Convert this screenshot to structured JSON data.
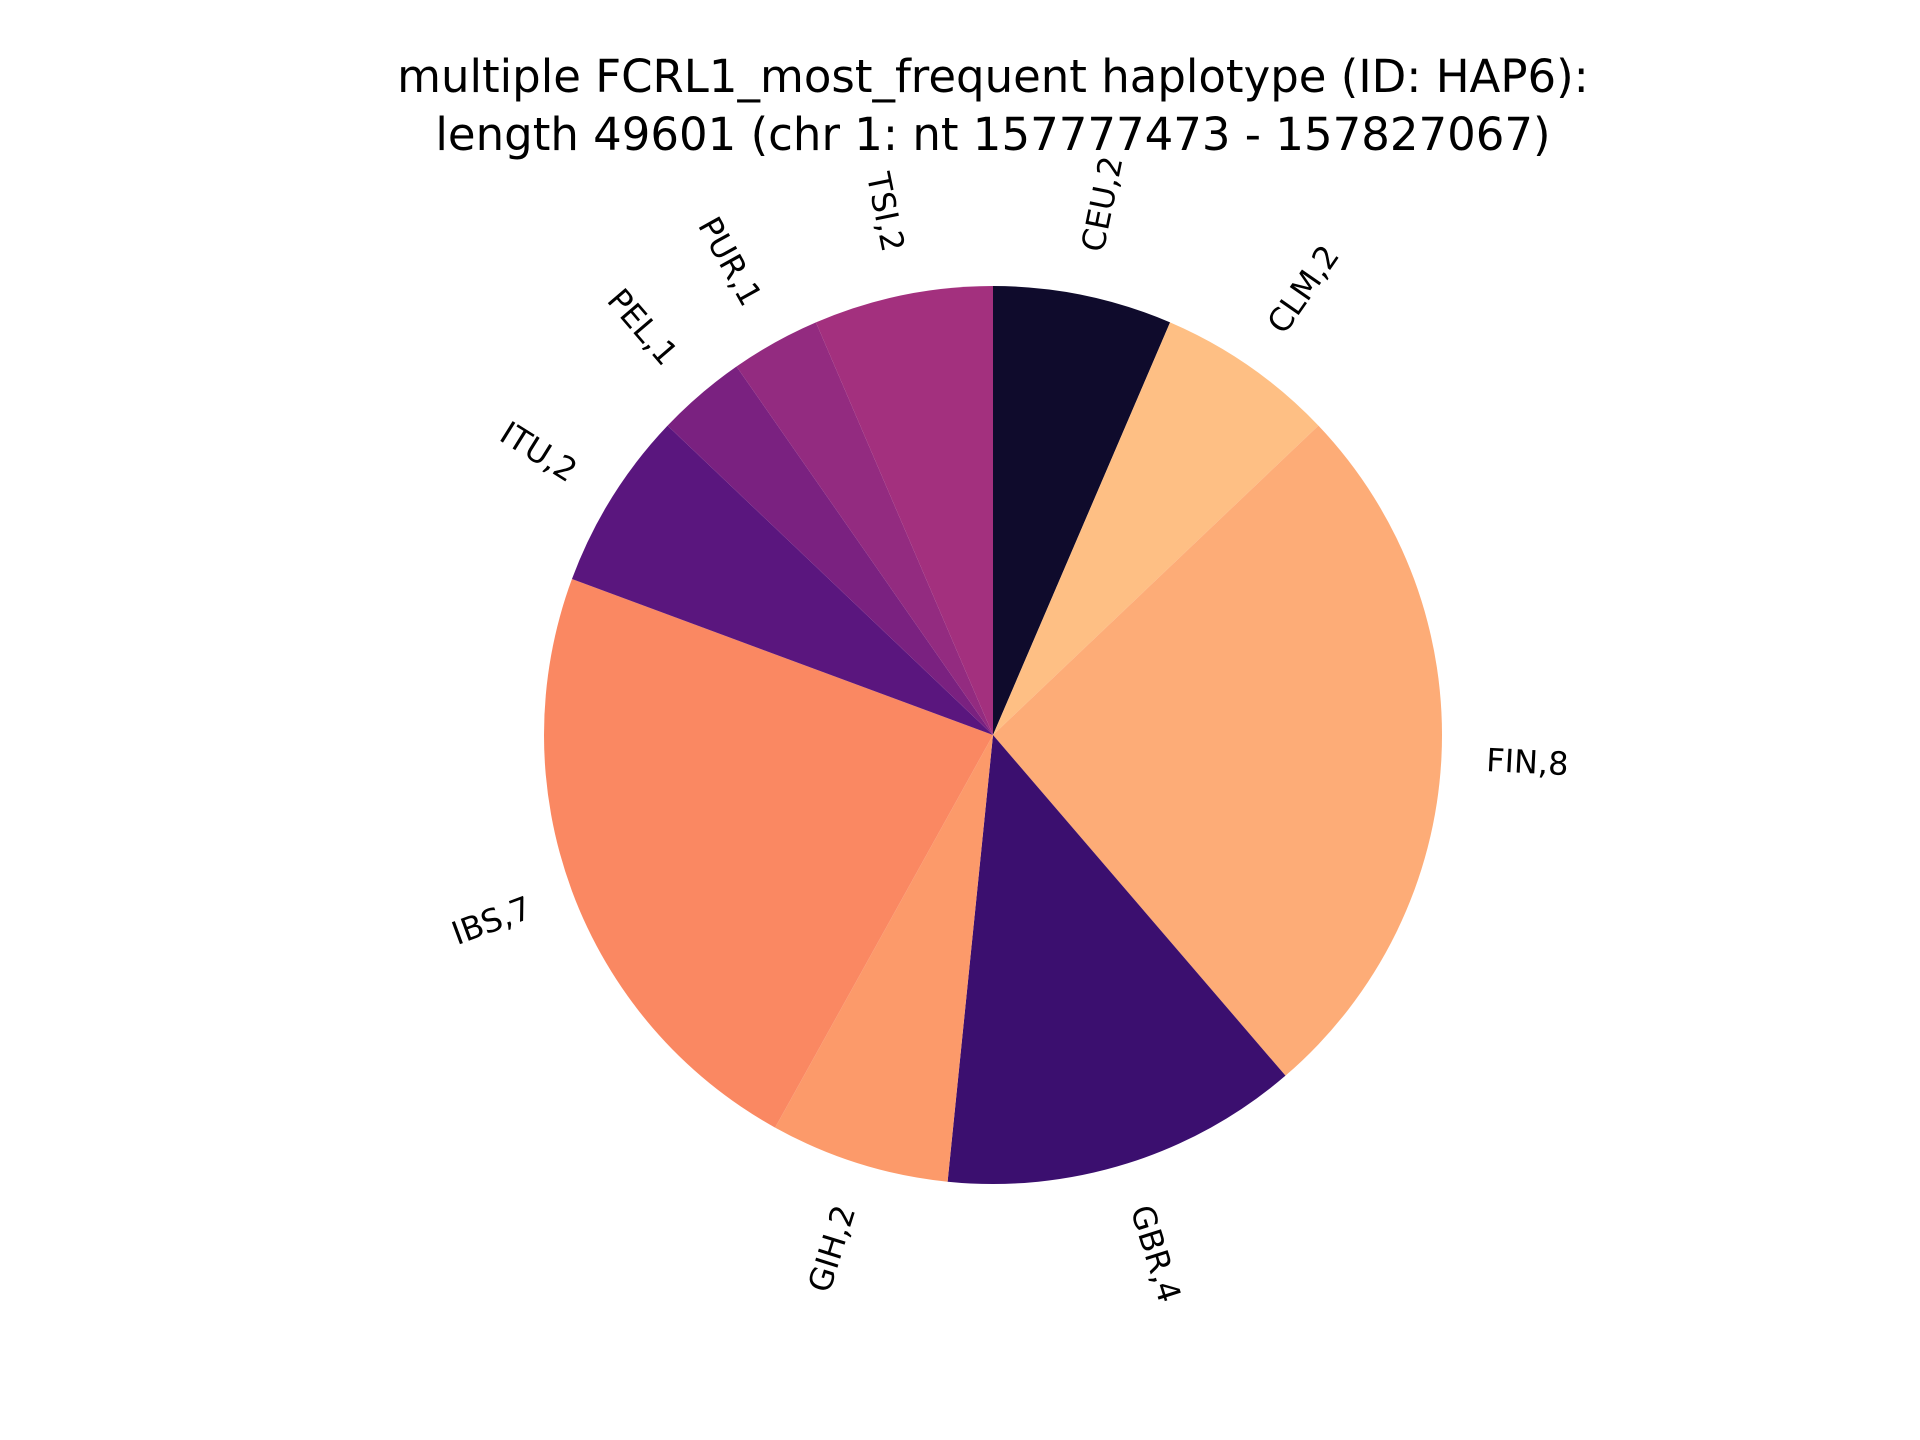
{
  "chart_data": {
    "type": "pie",
    "title_lines": [
      "multiple FCRL1_most_frequent haplotype (ID: HAP6):",
      "length 49601 (chr 1: nt 157777473 - 157827067)"
    ],
    "start_angle_deg": 90,
    "direction": "clockwise",
    "slices": [
      {
        "label": "CEU,2",
        "value": 2,
        "color": "#0f0b2c"
      },
      {
        "label": "CLM,2",
        "value": 2,
        "color": "#febf84"
      },
      {
        "label": "FIN,8",
        "value": 8,
        "color": "#fdac77"
      },
      {
        "label": "GBR,4",
        "value": 4,
        "color": "#3b0f6f"
      },
      {
        "label": "GIH,2",
        "value": 2,
        "color": "#fc9a6a"
      },
      {
        "label": "IBS,7",
        "value": 7,
        "color": "#fa8862"
      },
      {
        "label": "ITU,2",
        "value": 2,
        "color": "#5a167e"
      },
      {
        "label": "PEL,1",
        "value": 1,
        "color": "#7a2180"
      },
      {
        "label": "PUR,1",
        "value": 1,
        "color": "#932b80"
      },
      {
        "label": "TSI,2",
        "value": 2,
        "color": "#a3307e"
      }
    ]
  }
}
